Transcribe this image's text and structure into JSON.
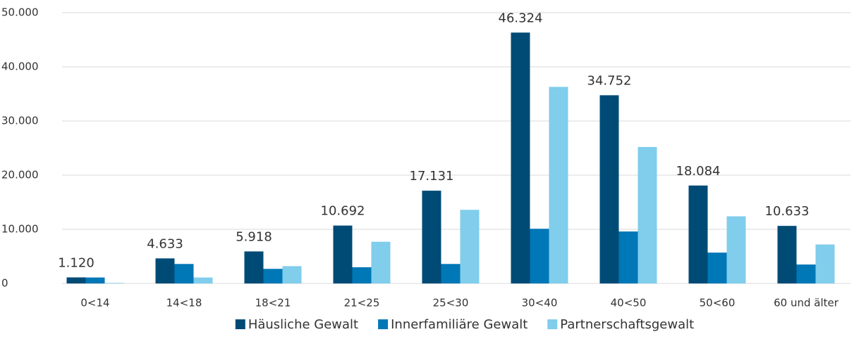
{
  "chart_data": {
    "type": "bar",
    "categories": [
      "0<14",
      "14<18",
      "18<21",
      "21<25",
      "25<30",
      "30<40",
      "40<50",
      "50<60",
      "60 und älter"
    ],
    "series": [
      {
        "name": "Häusliche Gewalt",
        "color": "#004b76",
        "values": [
          1120,
          4633,
          5918,
          10692,
          17131,
          46324,
          34752,
          18084,
          10633
        ],
        "value_labels": [
          "1.120",
          "4.633",
          "5.918",
          "10.692",
          "17.131",
          "46.324",
          "34.752",
          "18.084",
          "10.633"
        ]
      },
      {
        "name": "Innerfamiliäre Gewalt",
        "color": "#0077b6",
        "values": [
          1100,
          3600,
          2700,
          3000,
          3600,
          10100,
          9600,
          5700,
          3500
        ]
      },
      {
        "name": "Partnerschaftsgewalt",
        "color": "#80cdec",
        "values": [
          100,
          1100,
          3200,
          7700,
          13600,
          36300,
          25200,
          12400,
          7200
        ]
      }
    ],
    "ylim": [
      0,
      50000
    ],
    "yticks": [
      0,
      {
        "value": 10000,
        "label": "10.000"
      },
      {
        "value": 20000,
        "label": "20.000"
      },
      {
        "value": 30000,
        "label": "30.000"
      },
      {
        "value": 40000,
        "label": "40.000"
      },
      {
        "value": 50000,
        "label": "50.000"
      }
    ],
    "grid": true,
    "legend": "bottom"
  }
}
